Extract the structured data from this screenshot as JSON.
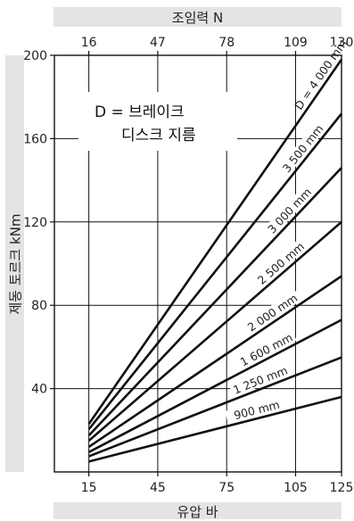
{
  "chart_data": {
    "type": "line",
    "title": "",
    "xlabel": "유압 바",
    "x_top_label": "조임력 N",
    "ylabel": "제동 토르크 kNm",
    "xlim": [
      0,
      125
    ],
    "ylim": [
      0,
      200
    ],
    "x_ticks": [
      15,
      45,
      75,
      105,
      125
    ],
    "x_top_ticks": [
      16,
      47,
      78,
      109,
      130
    ],
    "y_ticks": [
      40,
      80,
      120,
      160,
      200
    ],
    "grid": true,
    "annotation": [
      "D = 브레이크",
      "디스크 지름"
    ],
    "series": [
      {
        "name": "D = 4 000 mm",
        "x": [
          15,
          125
        ],
        "y": [
          23,
          198
        ]
      },
      {
        "name": "3 500 mm",
        "x": [
          15,
          125
        ],
        "y": [
          20.5,
          172
        ]
      },
      {
        "name": "3 000 mm",
        "x": [
          15,
          125
        ],
        "y": [
          17.5,
          146
        ]
      },
      {
        "name": "2 500 mm",
        "x": [
          15,
          125
        ],
        "y": [
          15,
          120
        ]
      },
      {
        "name": "2 000 mm",
        "x": [
          15,
          125
        ],
        "y": [
          12,
          94
        ]
      },
      {
        "name": "1 600 mm",
        "x": [
          15,
          125
        ],
        "y": [
          9.5,
          73
        ]
      },
      {
        "name": "1 250 mm",
        "x": [
          15,
          125
        ],
        "y": [
          7.5,
          55
        ]
      },
      {
        "name": "900 mm",
        "x": [
          15,
          125
        ],
        "y": [
          5,
          36
        ]
      }
    ]
  }
}
